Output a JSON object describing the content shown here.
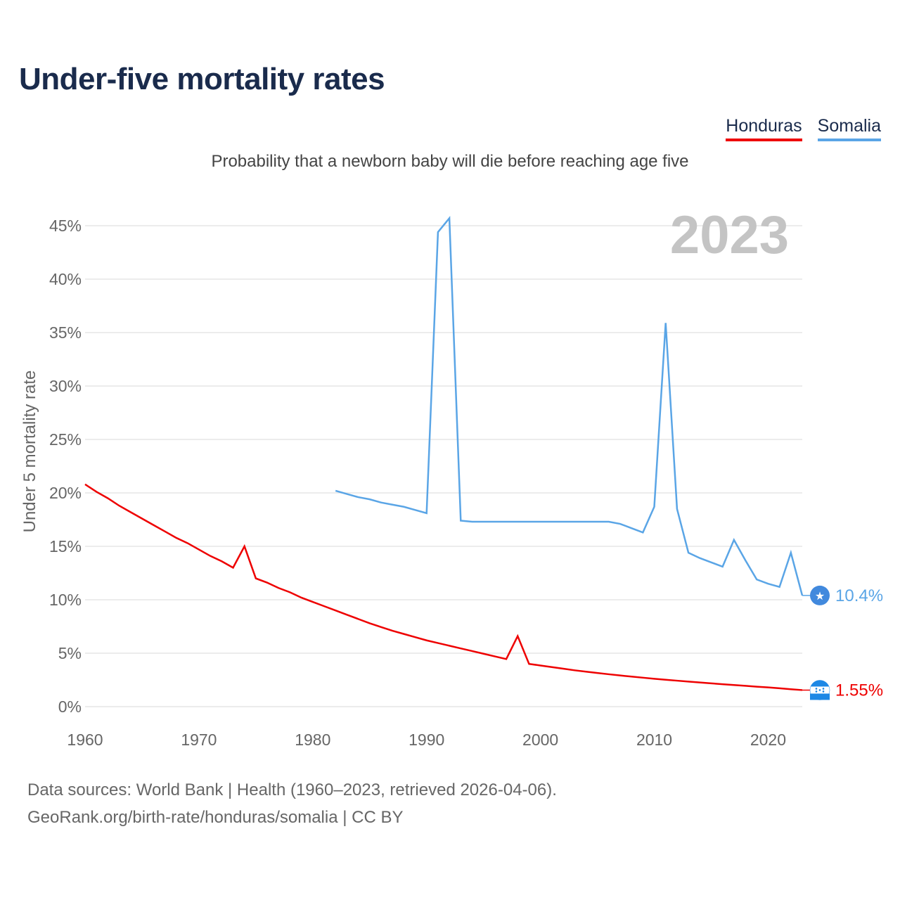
{
  "title": "Under-five mortality rates",
  "subtitle": "Probability that a newborn baby will die before reaching age five",
  "legend": [
    {
      "name": "Honduras",
      "color": "#ee0000"
    },
    {
      "name": "Somalia",
      "color": "#5aa5e6"
    }
  ],
  "footer": {
    "line1": "Data sources: World Bank | Health (1960–2023, retrieved 2026-04-06).",
    "line2": "GeoRank.org/birth-rate/honduras/somalia | CC BY"
  },
  "chart_data": {
    "type": "line",
    "title": "Under-five mortality rates",
    "xlabel": "",
    "ylabel": "Under 5 mortality rate",
    "year_label": "2023",
    "xlim": [
      1960,
      2023
    ],
    "ylim": [
      0,
      45
    ],
    "x_ticks": [
      1960,
      1970,
      1980,
      1990,
      2000,
      2010,
      2020
    ],
    "y_ticks": [
      0,
      5,
      10,
      15,
      20,
      25,
      30,
      35,
      40,
      45
    ],
    "y_tick_labels": [
      "0%",
      "5%",
      "10%",
      "15%",
      "20%",
      "25%",
      "30%",
      "35%",
      "40%",
      "45%"
    ],
    "series": [
      {
        "name": "Honduras",
        "color": "#ee0000",
        "end_label": "1.55%",
        "x": [
          1960,
          1961,
          1962,
          1963,
          1964,
          1965,
          1966,
          1967,
          1968,
          1969,
          1970,
          1971,
          1972,
          1973,
          1974,
          1975,
          1976,
          1977,
          1978,
          1979,
          1980,
          1981,
          1982,
          1983,
          1984,
          1985,
          1986,
          1987,
          1988,
          1989,
          1990,
          1991,
          1992,
          1993,
          1994,
          1995,
          1996,
          1997,
          1998,
          1999,
          2000,
          2001,
          2002,
          2003,
          2004,
          2005,
          2006,
          2007,
          2008,
          2009,
          2010,
          2011,
          2012,
          2013,
          2014,
          2015,
          2016,
          2017,
          2018,
          2019,
          2020,
          2021,
          2022,
          2023
        ],
        "values": [
          20.8,
          20.1,
          19.5,
          18.8,
          18.2,
          17.6,
          17.0,
          16.4,
          15.8,
          15.3,
          14.7,
          14.1,
          13.6,
          13.0,
          15.0,
          12.0,
          11.6,
          11.1,
          10.7,
          10.2,
          9.8,
          9.4,
          9.0,
          8.6,
          8.2,
          7.8,
          7.45,
          7.1,
          6.8,
          6.5,
          6.2,
          5.95,
          5.7,
          5.45,
          5.2,
          4.95,
          4.7,
          4.45,
          6.6,
          4.0,
          3.85,
          3.7,
          3.55,
          3.4,
          3.27,
          3.15,
          3.03,
          2.92,
          2.81,
          2.71,
          2.61,
          2.52,
          2.43,
          2.34,
          2.26,
          2.18,
          2.1,
          2.02,
          1.95,
          1.87,
          1.8,
          1.72,
          1.63,
          1.55
        ]
      },
      {
        "name": "Somalia",
        "color": "#5aa5e6",
        "end_label": "10.4%",
        "x": [
          1982,
          1983,
          1984,
          1985,
          1986,
          1987,
          1988,
          1989,
          1990,
          1991,
          1992,
          1993,
          1994,
          1995,
          1996,
          1997,
          1998,
          1999,
          2000,
          2001,
          2002,
          2003,
          2004,
          2005,
          2006,
          2007,
          2008,
          2009,
          2010,
          2011,
          2012,
          2013,
          2014,
          2015,
          2016,
          2017,
          2018,
          2019,
          2020,
          2021,
          2022,
          2023
        ],
        "values": [
          20.2,
          19.9,
          19.6,
          19.4,
          19.1,
          18.9,
          18.7,
          18.4,
          18.1,
          44.4,
          45.7,
          17.4,
          17.3,
          17.3,
          17.3,
          17.3,
          17.3,
          17.3,
          17.3,
          17.3,
          17.3,
          17.3,
          17.3,
          17.3,
          17.3,
          17.1,
          16.7,
          16.3,
          18.7,
          35.9,
          18.5,
          14.4,
          13.9,
          13.5,
          13.1,
          15.6,
          13.7,
          11.9,
          11.5,
          11.2,
          14.4,
          10.4
        ]
      }
    ]
  }
}
